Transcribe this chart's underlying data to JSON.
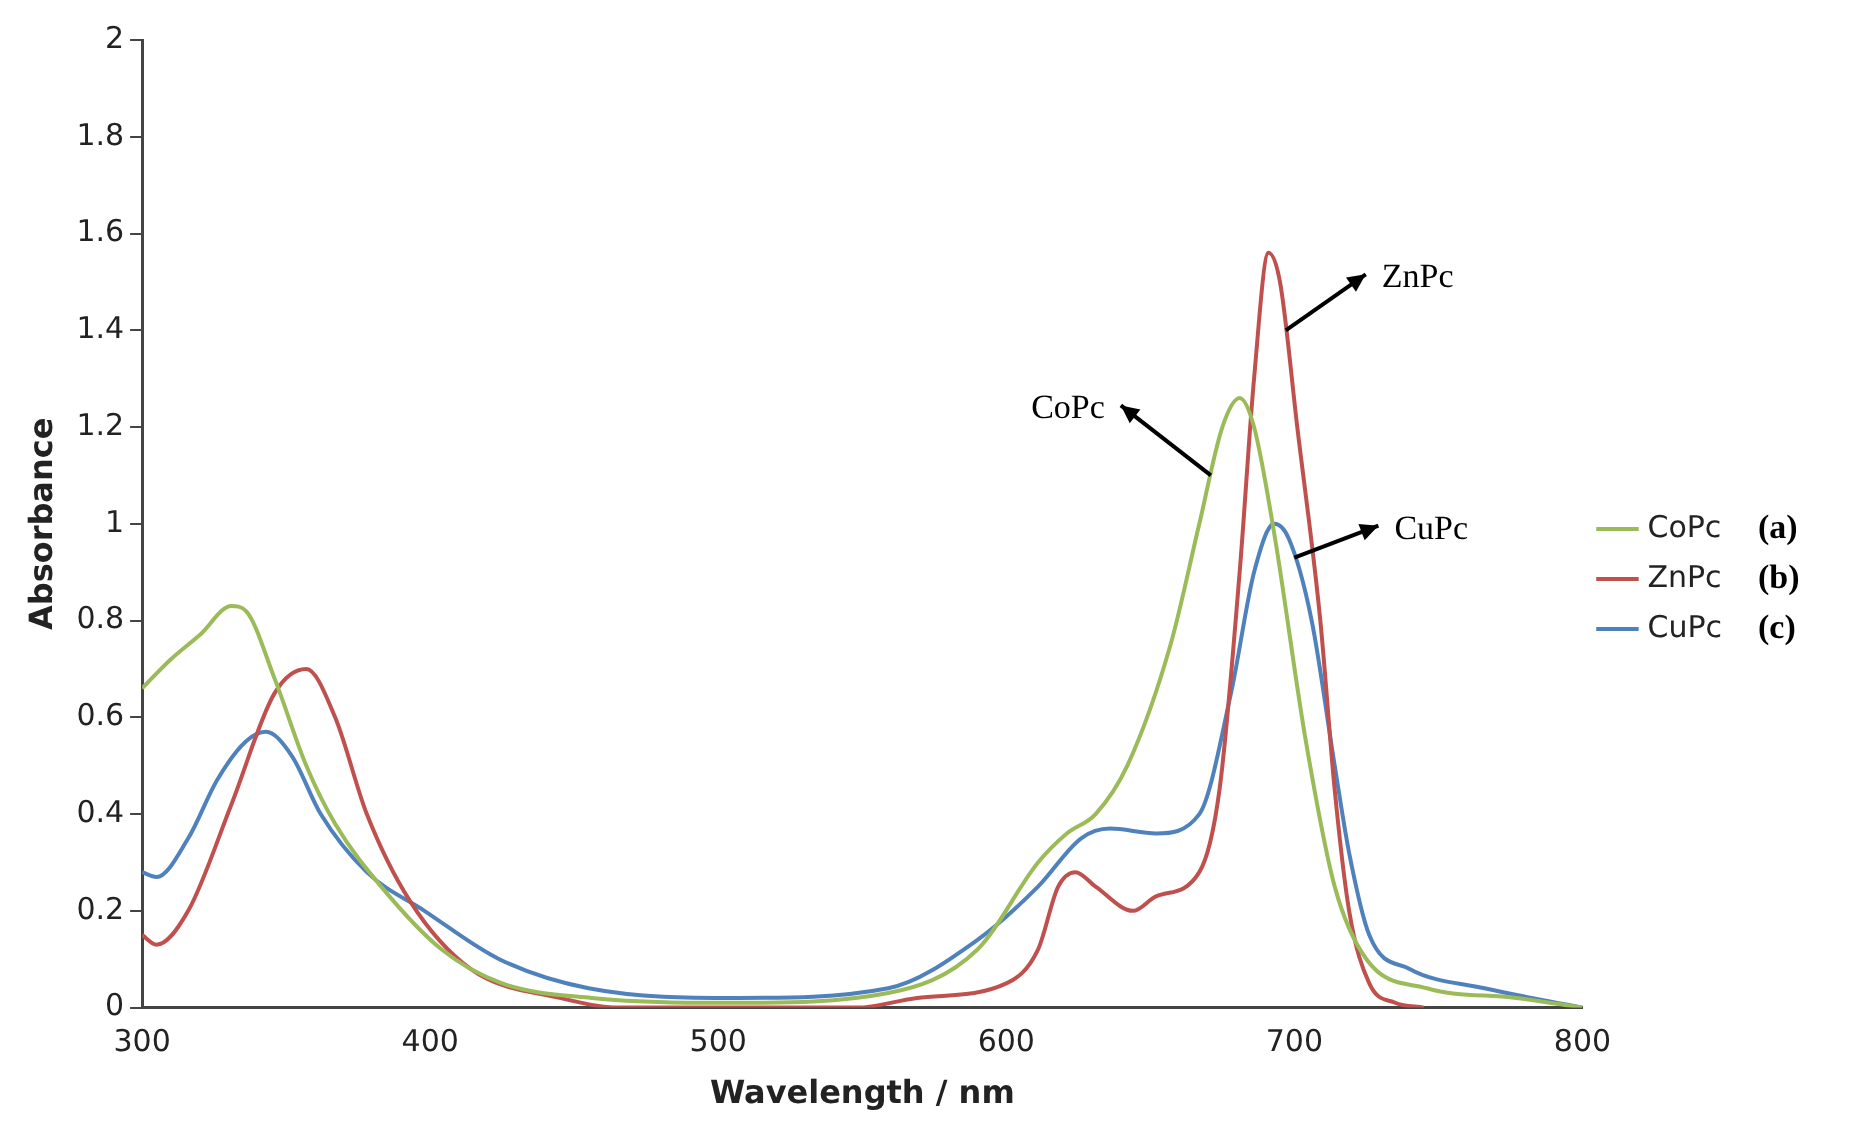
{
  "chart_data": {
    "type": "line",
    "xlabel": "Wavelength / nm",
    "ylabel": "Absorbance",
    "xlim": [
      300,
      800
    ],
    "xticks": [
      300,
      400,
      500,
      600,
      700,
      800
    ],
    "ylim": [
      0,
      2
    ],
    "yticks": [
      0,
      {
        "value": 0.2,
        "label": "0.2"
      },
      {
        "value": 0.4,
        "label": "0.4"
      },
      {
        "value": 0.6,
        "label": "0.6"
      },
      {
        "value": 0.8,
        "label": "0.8"
      },
      1,
      {
        "value": 1.2,
        "label": "1.2"
      },
      {
        "value": 1.4,
        "label": "1.4"
      },
      {
        "value": 1.6,
        "label": "1.6"
      },
      {
        "value": 1.8,
        "label": "1.8"
      },
      2
    ],
    "grid": false,
    "legend": "right",
    "marker": "none",
    "line_style": "solid",
    "series": [
      {
        "name": "CoPc",
        "color": "#9bbb59",
        "x": [
          300,
          310,
          320,
          331,
          336,
          346,
          357,
          367,
          383,
          404,
          425,
          456,
          507,
          559,
          590,
          611,
          621,
          631,
          642,
          657,
          667,
          675,
          681,
          686,
          693,
          704,
          714,
          725,
          746,
          777,
          800
        ],
        "values": [
          0.66,
          0.72,
          0.77,
          0.83,
          0.82,
          0.68,
          0.5,
          0.38,
          0.25,
          0.12,
          0.05,
          0.02,
          0.01,
          0.03,
          0.12,
          0.3,
          0.36,
          0.4,
          0.5,
          0.75,
          1.0,
          1.2,
          1.26,
          1.2,
          0.98,
          0.55,
          0.25,
          0.1,
          0.04,
          0.02,
          0
        ]
      },
      {
        "name": "ZnPc",
        "color": "#c0504d",
        "x": [
          300,
          305,
          316,
          331,
          346,
          357,
          367,
          378,
          393,
          414,
          445,
          466,
          548,
          569,
          600,
          611,
          618,
          624,
          631,
          644,
          652,
          667,
          674,
          681,
          686,
          691,
          695,
          701,
          709,
          714,
          719,
          726,
          735,
          745
        ],
        "values": [
          0.15,
          0.13,
          0.2,
          0.42,
          0.65,
          0.7,
          0.6,
          0.4,
          0.22,
          0.08,
          0.02,
          0,
          0,
          0.02,
          0.05,
          0.12,
          0.25,
          0.28,
          0.25,
          0.2,
          0.23,
          0.28,
          0.45,
          0.9,
          1.3,
          1.56,
          1.5,
          1.2,
          0.8,
          0.45,
          0.2,
          0.05,
          0.01,
          0
        ]
      },
      {
        "name": "CuPc",
        "color": "#4f81bd",
        "x": [
          300,
          305,
          316,
          326,
          336,
          343,
          352,
          362,
          378,
          398,
          424,
          455,
          507,
          559,
          590,
          611,
          626,
          636,
          652,
          667,
          678,
          686,
          693,
          698,
          706,
          714,
          719,
          726,
          740,
          766,
          800
        ],
        "values": [
          0.28,
          0.27,
          0.35,
          0.47,
          0.55,
          0.57,
          0.52,
          0.4,
          0.28,
          0.2,
          0.1,
          0.04,
          0.02,
          0.04,
          0.14,
          0.25,
          0.35,
          0.37,
          0.36,
          0.4,
          0.65,
          0.9,
          1.0,
          0.97,
          0.8,
          0.5,
          0.32,
          0.15,
          0.08,
          0.04,
          0
        ]
      }
    ],
    "annotations": [
      "(a)",
      "(b)",
      "(c)",
      {
        "text": "ZnPc",
        "x": 697,
        "y": 1.4
      },
      {
        "text": "CoPc",
        "x": 671,
        "y": 1.1
      },
      {
        "text": "CuPc",
        "x": 700,
        "y": 0.93
      }
    ]
  }
}
